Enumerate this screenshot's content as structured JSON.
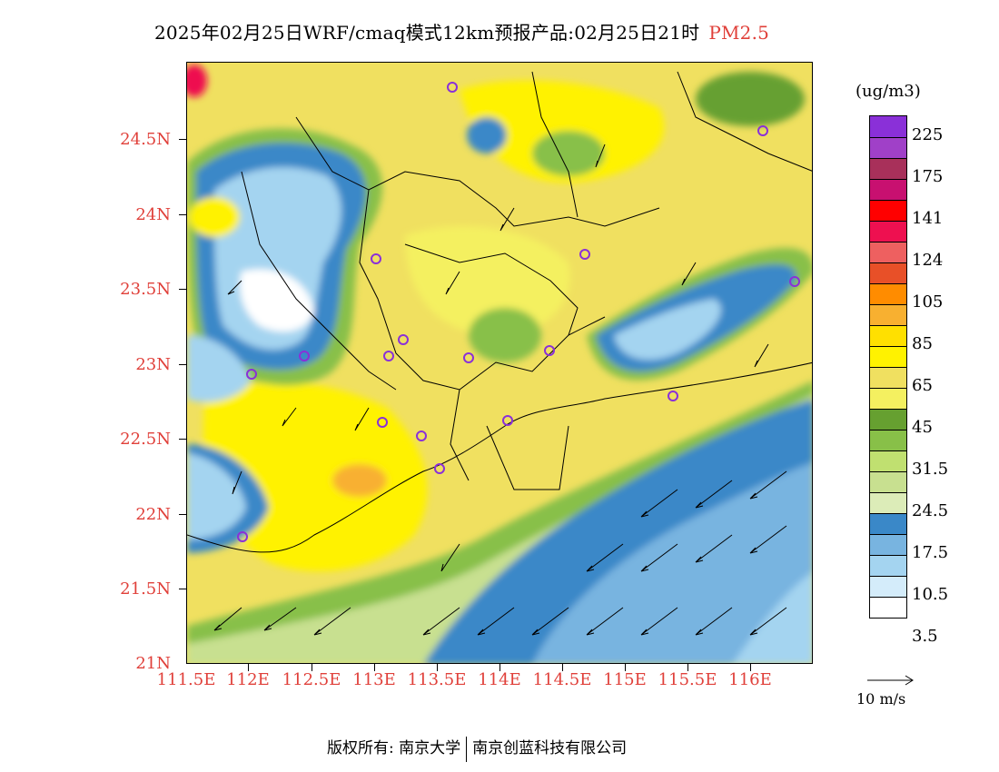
{
  "title": {
    "main": "2025年02月25日WRF/cmaq模式12km预报产品:02月25日21时",
    "variable": "PM2.5"
  },
  "map": {
    "lat_labels": [
      "24.5N",
      "24N",
      "23.5N",
      "23N",
      "22.5N",
      "22N",
      "21.5N",
      "21N"
    ],
    "lon_labels": [
      "111.5E",
      "112E",
      "112.5E",
      "113E",
      "113.5E",
      "114E",
      "114.5E",
      "115E",
      "115.5E",
      "116E"
    ],
    "lat_range": [
      21,
      25
    ],
    "lon_range": [
      111.5,
      116.5
    ]
  },
  "colorbar": {
    "unit": "(ug/m3)",
    "colors": [
      "#8a30d8",
      "#a040c8",
      "#a8305a",
      "#c81070",
      "#ff0000",
      "#ee1050",
      "#ee6060",
      "#e85028",
      "#ff8c00",
      "#f8b030",
      "#ffe000",
      "#fff200",
      "#f0e060",
      "#f4f060",
      "#66a030",
      "#88c048",
      "#c0e070",
      "#c8e090",
      "#dcecb8",
      "#3a88c8",
      "#78b4e0",
      "#a4d4f0",
      "#d4ecfa",
      "#ffffff"
    ],
    "labels": [
      "225",
      "175",
      "141",
      "124",
      "105",
      "85",
      "65",
      "45",
      "31.5",
      "24.5",
      "17.5",
      "10.5",
      "3.5"
    ]
  },
  "wind_reference": {
    "label": "10 m/s"
  },
  "footer": {
    "copyright": "版权所有: 南京大学",
    "company": "南京创蓝科技有限公司"
  }
}
